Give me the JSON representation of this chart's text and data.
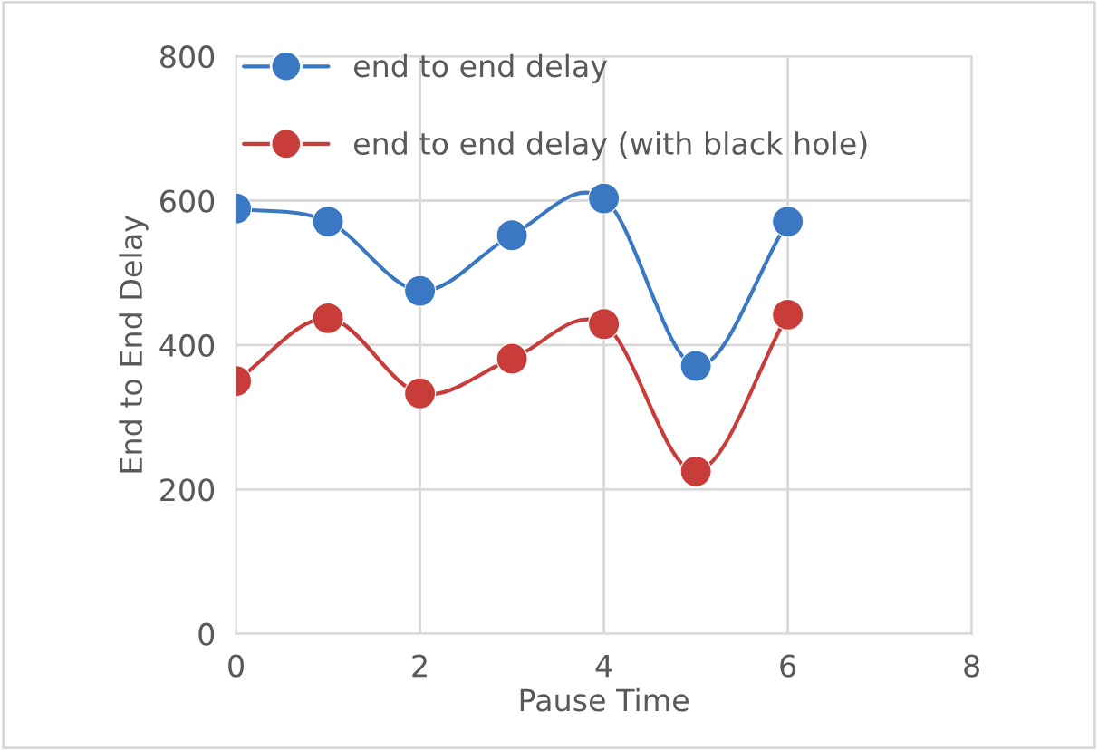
{
  "chart_data": {
    "type": "line",
    "xlabel": "Pause Time",
    "ylabel": "End to End Delay",
    "x": [
      0,
      1,
      2,
      3,
      4,
      5,
      6
    ],
    "series": [
      {
        "name": "end to end delay",
        "color": "#3a78c4",
        "values": [
          589,
          571,
          475,
          552,
          603,
          371,
          571
        ]
      },
      {
        "name": "end to end delay (with black hole)",
        "color": "#c83c3a",
        "values": [
          350,
          437,
          333,
          381,
          429,
          225,
          442
        ]
      }
    ],
    "xlim": [
      0,
      8
    ],
    "xticks": [
      0,
      2,
      4,
      6,
      8
    ],
    "ylim": [
      0,
      800
    ],
    "yticks": [
      0,
      200,
      400,
      600,
      800
    ],
    "grid": true,
    "legend": "top left",
    "marker": "circle",
    "line_style": "solid"
  }
}
